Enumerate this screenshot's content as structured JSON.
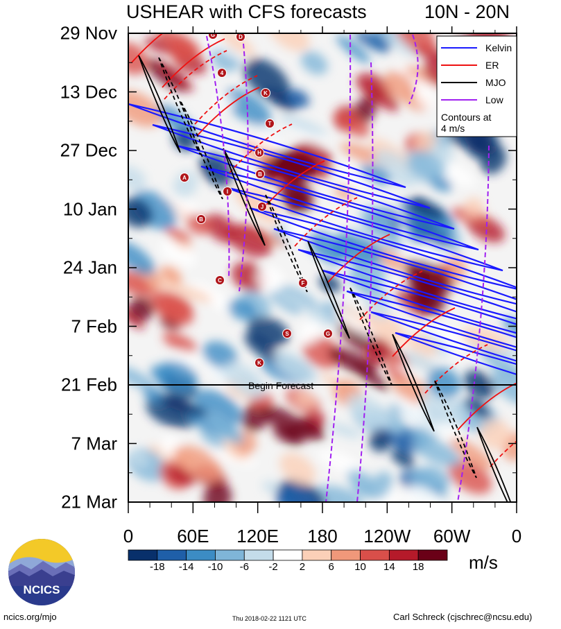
{
  "title": "USHEAR with CFS forecasts",
  "region": "10N - 20N",
  "units": "m/s",
  "footer": {
    "site": "ncics.org/mjo",
    "timestamp": "Thu 2018-02-22 1121 UTC",
    "author": "Carl Schreck (cjschrec@ncsu.edu)"
  },
  "logo_text": "NCICS",
  "colors": {
    "kelvin": "#1a1aff",
    "er": "#ee1111",
    "mjo": "#000000",
    "low": "#a020f0"
  },
  "chart_data": {
    "type": "heatmap",
    "title": "USHEAR with CFS forecasts",
    "subtitle": "10N - 20N",
    "x_ticks": [
      "0",
      "60E",
      "120E",
      "180",
      "120W",
      "60W",
      "0"
    ],
    "x_range": [
      0,
      360
    ],
    "y_ticks": [
      "29 Nov",
      "13 Dec",
      "27 Dec",
      "10 Jan",
      "24 Jan",
      "7 Feb",
      "21 Feb",
      "7 Mar",
      "21 Mar"
    ],
    "y_range_days": [
      0,
      112
    ],
    "forecast_start_label": "Begin Forecast",
    "forecast_start_day": 84,
    "colorbar": {
      "labels": [
        "-18",
        "-14",
        "-10",
        "-6",
        "-2",
        "2",
        "6",
        "10",
        "14",
        "18"
      ],
      "colors": [
        "#08306b",
        "#1f5fa8",
        "#3c8cc4",
        "#7fb5d8",
        "#c4dcea",
        "#ffffff",
        "#fbd0b8",
        "#f0987a",
        "#d94f4a",
        "#b51a2a",
        "#6a0017"
      ],
      "units": "m/s"
    },
    "legend": {
      "entries": [
        "Kelvin",
        "ER",
        "MJO",
        "Low"
      ],
      "note_line1": "Contours at",
      "note_line2": "4 m/s",
      "placement": "top-right"
    },
    "storm_markers": [
      "G",
      "D",
      "4",
      "K",
      "T",
      "H",
      "B",
      "A",
      "I",
      "J",
      "B",
      "C",
      "F",
      "S",
      "G",
      "K"
    ]
  }
}
